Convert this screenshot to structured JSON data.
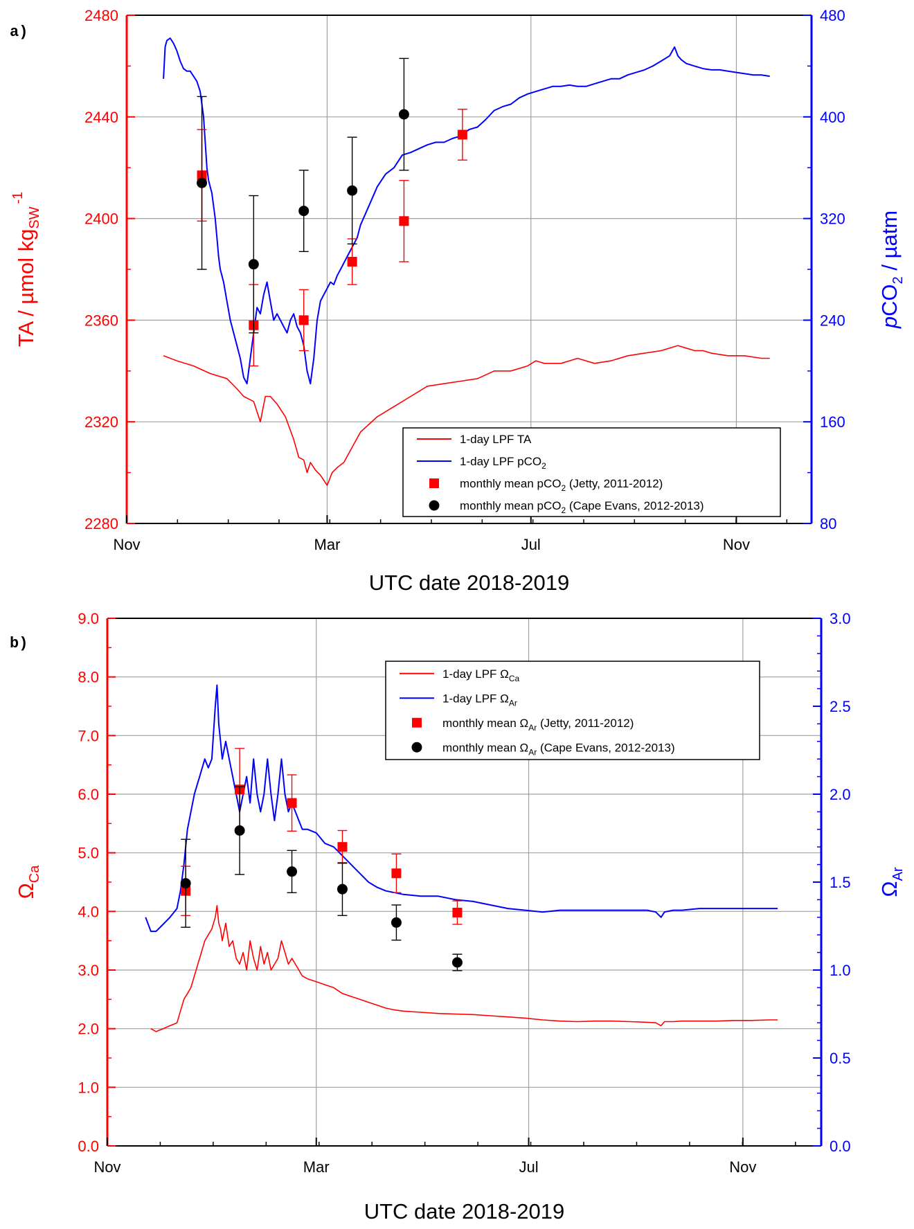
{
  "chart_data": [
    {
      "type": "line",
      "panel_label": "a)",
      "xlabel": "UTC date 2018-2019",
      "x_ticks": [
        "Nov",
        "Mar",
        "Jul",
        "Nov"
      ],
      "x_tick_days": [
        0,
        120,
        242,
        365
      ],
      "xlim_days": [
        0,
        410
      ],
      "y_left": {
        "label_main": "TA / µmol kg",
        "label_sub": "SW",
        "label_sup": "-1",
        "range": [
          2280,
          2480
        ],
        "ticks": [
          "2280",
          "2320",
          "2360",
          "2400",
          "2440",
          "2480"
        ],
        "color": "#ff0000"
      },
      "y_right": {
        "label_pre": "p",
        "label_main": "CO",
        "label_sub": "2",
        "label_post": " / µatm",
        "range": [
          80,
          480
        ],
        "ticks": [
          "80",
          "160",
          "240",
          "320",
          "400",
          "480"
        ],
        "color": "#0000ff"
      },
      "grid": true,
      "legend_position": "bottom-right",
      "legend": [
        {
          "text": "1-day LPF TA",
          "sub": "",
          "after": ""
        },
        {
          "text": "1-day LPF pCO",
          "sub": "2",
          "after": ""
        },
        {
          "text": "monthly mean pCO",
          "sub": "2",
          "after": " (Jetty, 2011-2012)"
        },
        {
          "text": "monthly mean pCO",
          "sub": "2",
          "after": " (Cape Evans, 2012-2013)"
        }
      ],
      "series": [
        {
          "name": "1-day LPF TA",
          "axis": "left",
          "color": "#ff0000",
          "x": [
            22,
            30,
            40,
            50,
            60,
            66,
            70,
            73,
            76,
            80,
            83,
            86,
            90,
            95,
            100,
            103,
            106,
            108,
            110,
            113,
            116,
            118,
            120,
            123,
            126,
            130,
            135,
            140,
            150,
            160,
            170,
            180,
            190,
            200,
            210,
            220,
            230,
            240,
            245,
            250,
            260,
            270,
            280,
            290,
            300,
            310,
            320,
            330,
            335,
            340,
            345,
            350,
            360,
            370,
            380,
            385
          ],
          "y": [
            2346,
            2344,
            2342,
            2339,
            2337,
            2333,
            2330,
            2329,
            2328,
            2320,
            2330,
            2330,
            2327,
            2322,
            2313,
            2306,
            2305,
            2300,
            2304,
            2301,
            2299,
            2297,
            2295,
            2300,
            2302,
            2304,
            2310,
            2316,
            2322,
            2326,
            2330,
            2334,
            2335,
            2336,
            2337,
            2340,
            2340,
            2342,
            2344,
            2343,
            2343,
            2345,
            2343,
            2344,
            2346,
            2347,
            2348,
            2350,
            2349,
            2348,
            2348,
            2347,
            2346,
            2346,
            2345,
            2345
          ]
        },
        {
          "name": "1-day LPF pCO2",
          "axis": "right",
          "color": "#0000ff",
          "x": [
            22,
            23,
            24,
            26,
            28,
            30,
            32,
            34,
            36,
            38,
            40,
            42,
            44,
            46,
            47,
            48,
            49,
            50,
            51,
            52,
            53,
            54,
            55,
            56,
            58,
            60,
            62,
            64,
            66,
            68,
            70,
            72,
            74,
            76,
            78,
            80,
            82,
            84,
            86,
            88,
            90,
            92,
            94,
            96,
            98,
            100,
            102,
            104,
            106,
            108,
            110,
            112,
            114,
            116,
            118,
            120,
            122,
            124,
            126,
            128,
            130,
            132,
            134,
            136,
            138,
            140,
            145,
            150,
            155,
            160,
            165,
            170,
            175,
            180,
            185,
            190,
            195,
            200,
            205,
            210,
            215,
            220,
            225,
            230,
            235,
            240,
            245,
            250,
            255,
            260,
            265,
            270,
            275,
            280,
            285,
            290,
            295,
            300,
            305,
            310,
            315,
            320,
            325,
            328,
            330,
            332,
            335,
            340,
            345,
            350,
            355,
            360,
            365,
            370,
            375,
            380,
            385
          ],
          "y": [
            430,
            455,
            460,
            462,
            458,
            452,
            444,
            438,
            436,
            436,
            432,
            428,
            420,
            400,
            380,
            360,
            350,
            345,
            340,
            330,
            320,
            305,
            290,
            280,
            270,
            255,
            240,
            230,
            220,
            210,
            195,
            190,
            210,
            230,
            250,
            245,
            260,
            270,
            255,
            240,
            245,
            240,
            235,
            230,
            240,
            245,
            235,
            230,
            220,
            200,
            190,
            210,
            240,
            255,
            260,
            265,
            270,
            268,
            275,
            280,
            285,
            290,
            295,
            300,
            305,
            315,
            330,
            345,
            355,
            360,
            370,
            372,
            375,
            378,
            380,
            380,
            383,
            385,
            390,
            392,
            398,
            405,
            408,
            410,
            415,
            418,
            420,
            422,
            424,
            424,
            425,
            424,
            424,
            426,
            428,
            430,
            430,
            433,
            435,
            437,
            440,
            444,
            448,
            455,
            448,
            445,
            442,
            440,
            438,
            437,
            437,
            436,
            435,
            434,
            433,
            433,
            432
          ]
        },
        {
          "name": "monthly mean pCO2 (Jetty, 2011-2012)",
          "axis": "right",
          "color": "#ff0000",
          "marker": "square",
          "x": [
            45,
            76,
            106,
            135,
            166,
            201
          ],
          "y": [
            2417,
            2358,
            2360,
            2383,
            2399,
            2433
          ],
          "y_axis_units": "left",
          "err": [
            18,
            16,
            12,
            9,
            16,
            10
          ]
        },
        {
          "name": "monthly mean pCO2 (Cape Evans, 2012-2013)",
          "axis": "right",
          "color": "#000000",
          "marker": "circle",
          "x": [
            45,
            76,
            106,
            135,
            166
          ],
          "y": [
            2414,
            2382,
            2403,
            2411,
            2441
          ],
          "y_axis_units": "left",
          "err": [
            34,
            27,
            16,
            21,
            22
          ]
        }
      ]
    },
    {
      "type": "line",
      "panel_label": "b)",
      "xlabel": "UTC date 2018-2019",
      "x_ticks": [
        "Nov",
        "Mar",
        "Jul",
        "Nov"
      ],
      "x_tick_days": [
        0,
        120,
        242,
        365
      ],
      "xlim_days": [
        0,
        410
      ],
      "y_left": {
        "label_main": "Ω",
        "label_sub": "Ca",
        "range": [
          0,
          9
        ],
        "ticks": [
          "0.0",
          "1.0",
          "2.0",
          "3.0",
          "4.0",
          "5.0",
          "6.0",
          "7.0",
          "8.0",
          "9.0"
        ],
        "color": "#ff0000"
      },
      "y_right": {
        "label_main": "Ω",
        "label_sub": "Ar",
        "range": [
          0,
          3
        ],
        "ticks": [
          "0.0",
          "0.5",
          "1.0",
          "1.5",
          "2.0",
          "2.5",
          "3.0"
        ],
        "color": "#0000ff"
      },
      "grid": true,
      "legend_position": "top-right",
      "legend": [
        {
          "text": "1-day LPF Ω",
          "sub": "Ca",
          "after": ""
        },
        {
          "text": "1-day LPF Ω",
          "sub": "Ar",
          "after": ""
        },
        {
          "text": "monthly mean Ω",
          "sub": "Ar",
          "after": " (Jetty, 2011-2012)"
        },
        {
          "text": "monthly mean Ω",
          "sub": "Ar",
          "after": " (Cape Evans, 2012-2013)"
        }
      ],
      "series": [
        {
          "name": "1-day LPF ΩCa",
          "axis": "left",
          "color": "#ff0000",
          "x": [
            25,
            28,
            32,
            36,
            40,
            42,
            44,
            46,
            48,
            50,
            53,
            56,
            58,
            60,
            62,
            63,
            64,
            65,
            66,
            68,
            70,
            72,
            74,
            76,
            78,
            80,
            82,
            84,
            86,
            88,
            90,
            92,
            94,
            96,
            98,
            100,
            102,
            104,
            106,
            108,
            110,
            112,
            115,
            120,
            125,
            130,
            135,
            140,
            145,
            150,
            155,
            160,
            165,
            170,
            180,
            190,
            200,
            210,
            220,
            230,
            240,
            250,
            260,
            270,
            280,
            290,
            300,
            310,
            315,
            318,
            320,
            325,
            330,
            340,
            350,
            360,
            370,
            380,
            385
          ],
          "y": [
            2.0,
            1.95,
            2.0,
            2.05,
            2.1,
            2.3,
            2.5,
            2.6,
            2.7,
            2.9,
            3.2,
            3.5,
            3.6,
            3.7,
            3.9,
            4.1,
            3.8,
            3.7,
            3.5,
            3.8,
            3.4,
            3.5,
            3.2,
            3.1,
            3.3,
            3.0,
            3.5,
            3.2,
            3.0,
            3.4,
            3.1,
            3.3,
            3.0,
            3.1,
            3.2,
            3.5,
            3.3,
            3.1,
            3.2,
            3.1,
            3.0,
            2.9,
            2.85,
            2.8,
            2.75,
            2.7,
            2.6,
            2.55,
            2.5,
            2.45,
            2.4,
            2.35,
            2.32,
            2.3,
            2.28,
            2.26,
            2.25,
            2.24,
            2.22,
            2.2,
            2.18,
            2.15,
            2.13,
            2.12,
            2.13,
            2.13,
            2.12,
            2.11,
            2.1,
            2.05,
            2.12,
            2.12,
            2.13,
            2.13,
            2.13,
            2.14,
            2.14,
            2.15,
            2.15
          ]
        },
        {
          "name": "1-day LPF ΩAr",
          "axis": "right",
          "color": "#0000ff",
          "x": [
            22,
            25,
            28,
            32,
            36,
            40,
            42,
            44,
            46,
            48,
            50,
            53,
            56,
            58,
            60,
            62,
            63,
            64,
            65,
            66,
            68,
            70,
            72,
            74,
            76,
            78,
            80,
            82,
            84,
            86,
            88,
            90,
            92,
            94,
            96,
            98,
            100,
            102,
            104,
            106,
            108,
            110,
            112,
            115,
            120,
            125,
            130,
            135,
            140,
            145,
            150,
            155,
            160,
            165,
            170,
            180,
            190,
            200,
            210,
            220,
            230,
            240,
            250,
            260,
            270,
            280,
            290,
            300,
            310,
            315,
            318,
            320,
            325,
            330,
            340,
            350,
            360,
            370,
            380,
            385
          ],
          "y": [
            1.3,
            1.22,
            1.22,
            1.26,
            1.3,
            1.35,
            1.45,
            1.6,
            1.8,
            1.9,
            2.0,
            2.1,
            2.2,
            2.15,
            2.2,
            2.5,
            2.62,
            2.4,
            2.3,
            2.2,
            2.3,
            2.2,
            2.1,
            2.0,
            1.9,
            2.0,
            2.1,
            1.95,
            2.2,
            2.0,
            1.9,
            2.0,
            2.2,
            2.0,
            1.85,
            2.0,
            2.2,
            2.0,
            1.9,
            1.95,
            1.9,
            1.85,
            1.8,
            1.8,
            1.78,
            1.72,
            1.7,
            1.65,
            1.6,
            1.55,
            1.5,
            1.47,
            1.45,
            1.44,
            1.43,
            1.42,
            1.42,
            1.4,
            1.39,
            1.37,
            1.35,
            1.34,
            1.33,
            1.34,
            1.34,
            1.34,
            1.34,
            1.34,
            1.34,
            1.33,
            1.3,
            1.33,
            1.34,
            1.34,
            1.35,
            1.35,
            1.35,
            1.35,
            1.35,
            1.35
          ]
        },
        {
          "name": "monthly mean ΩAr (Jetty, 2011-2012)",
          "axis": "left",
          "color": "#ff0000",
          "marker": "square",
          "x": [
            45,
            76,
            106,
            135,
            166,
            201
          ],
          "y": [
            4.35,
            6.08,
            5.85,
            5.1,
            4.65,
            3.98
          ],
          "err": [
            0.42,
            0.7,
            0.48,
            0.28,
            0.33,
            0.2
          ]
        },
        {
          "name": "monthly mean ΩAr (Cape Evans, 2012-2013)",
          "axis": "left",
          "color": "#000000",
          "marker": "circle",
          "x": [
            45,
            76,
            106,
            135,
            166,
            201
          ],
          "y": [
            4.48,
            5.38,
            4.68,
            4.38,
            3.81,
            3.13
          ],
          "err": [
            0.75,
            0.75,
            0.36,
            0.45,
            0.3,
            0.14
          ]
        }
      ]
    }
  ]
}
